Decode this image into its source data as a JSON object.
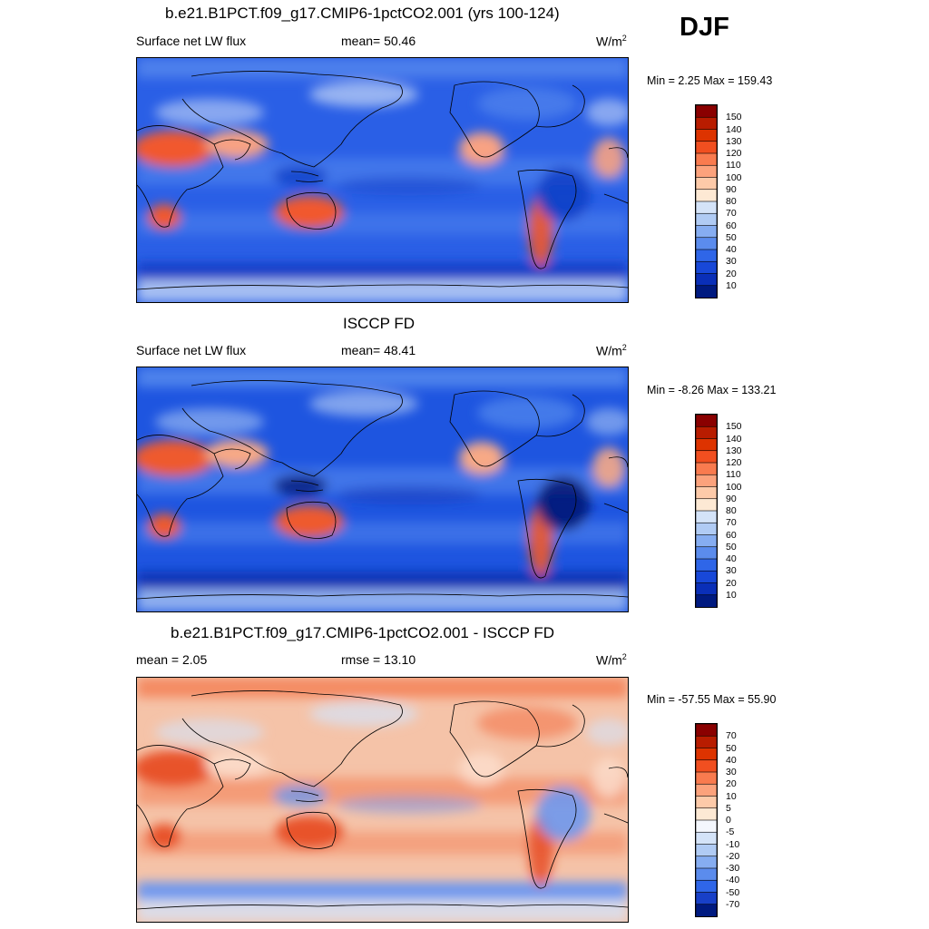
{
  "season": "DJF",
  "panels": [
    {
      "id": "model",
      "title": "b.e21.B1PCT.f09_g17.CMIP6-1pctCO2.001 (yrs 100-124)",
      "left_label": "Surface net LW flux",
      "mid_label": "mean=  50.46",
      "units": "W/m",
      "units_sup": "2",
      "minmax": "Min =   2.25 Max = 159.43",
      "colorbar": {
        "labels": [
          "150",
          "140",
          "130",
          "120",
          "110",
          "100",
          "90",
          "80",
          "70",
          "60",
          "50",
          "40",
          "30",
          "20",
          "10"
        ],
        "colors": [
          "#8a0000",
          "#b81c00",
          "#dd3300",
          "#f14f20",
          "#f97b4f",
          "#fca27c",
          "#fdcaa9",
          "#fde9d4",
          "#d4e3f8",
          "#b0cbf4",
          "#86adf1",
          "#5b8ced",
          "#2f66e8",
          "#1848d8",
          "#0a2fb8",
          "#001a80"
        ]
      },
      "map_colors": {
        "ocean": "#2a5fe6",
        "band": "#4d80ec",
        "light": "#c6d7f6",
        "warm": "#f1582d",
        "warmlight": "#f8a283",
        "dark": "#1240c8",
        "verydark": "#0a2e9c"
      }
    },
    {
      "id": "obs",
      "title": "ISCCP FD",
      "left_label": "Surface net LW flux",
      "mid_label": "mean=  48.41",
      "units": "W/m",
      "units_sup": "2",
      "minmax": "Min =  -8.26 Max = 133.21",
      "colorbar": {
        "labels": [
          "150",
          "140",
          "130",
          "120",
          "110",
          "100",
          "90",
          "80",
          "70",
          "60",
          "50",
          "40",
          "30",
          "20",
          "10"
        ],
        "colors": [
          "#8a0000",
          "#b81c00",
          "#dd3300",
          "#f14f20",
          "#f97b4f",
          "#fca27c",
          "#fdcaa9",
          "#fde9d4",
          "#d4e3f8",
          "#b0cbf4",
          "#86adf1",
          "#5b8ced",
          "#2f66e8",
          "#1848d8",
          "#0a2fb8",
          "#001a80"
        ]
      },
      "map_colors": {
        "ocean": "#1e55e0",
        "band": "#4e82ec",
        "light": "#a9c4f3",
        "warm": "#ee5a2e",
        "warmlight": "#f7a986",
        "dark": "#0e34b5",
        "verydark": "#021a78"
      }
    },
    {
      "id": "diff",
      "title": "b.e21.B1PCT.f09_g17.CMIP6-1pctCO2.001 - ISCCP FD",
      "left_label": "mean =   2.05",
      "mid_label": "rmse =  13.10",
      "units": "W/m",
      "units_sup": "2",
      "minmax": "Min = -57.55 Max =  55.90",
      "colorbar": {
        "labels": [
          "70",
          "50",
          "40",
          "30",
          "20",
          "10",
          "5",
          "0",
          "-5",
          "-10",
          "-20",
          "-30",
          "-40",
          "-50",
          "-70"
        ],
        "colors": [
          "#8a0000",
          "#b81c00",
          "#dd3300",
          "#f14f20",
          "#f97b4f",
          "#fca27c",
          "#fdcaa9",
          "#fde9d4",
          "#f4f7fd",
          "#d4e3f8",
          "#b0cbf4",
          "#86adf1",
          "#5b8ced",
          "#2f66e8",
          "#1840c8",
          "#001a80"
        ]
      },
      "map_colors": {
        "ocean": "#f5c3a8",
        "band": "#f48a62",
        "light": "#d6e2f6",
        "warm": "#e8532b",
        "warmlight": "#fbd9c6",
        "dark": "#6f98ee",
        "verydark": "#2f5ee0"
      }
    }
  ]
}
